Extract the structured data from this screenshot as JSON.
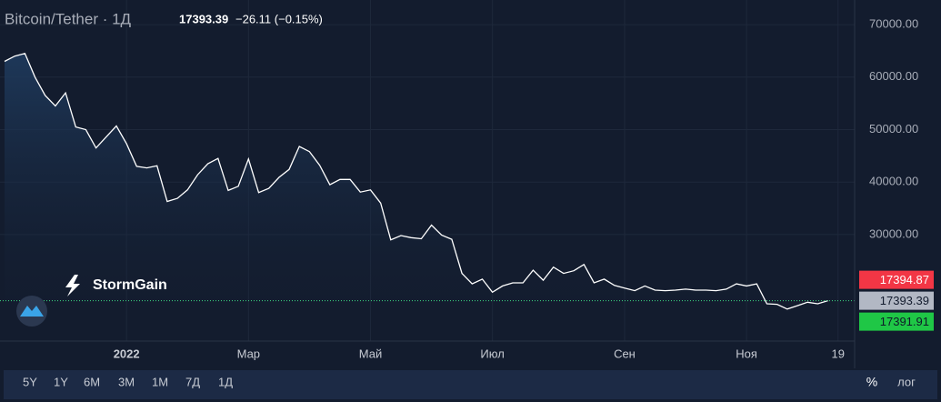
{
  "chart_data": {
    "type": "line",
    "title": "Bitcoin/Tether · 1Д",
    "last_price": 17393.39,
    "change": "−26.11 (−0.15%)",
    "ask": 17394.87,
    "bid": 17391.91,
    "color": "#ffffff",
    "ylim": [
      9700,
      74700
    ],
    "yticks": [
      {
        "value": 30000,
        "label": "30000.00"
      },
      {
        "value": 40000,
        "label": "40000.00"
      },
      {
        "value": 50000,
        "label": "50000.00"
      },
      {
        "value": 60000,
        "label": "60000.00"
      },
      {
        "value": 70000,
        "label": "70000.00"
      }
    ],
    "grid": true,
    "categories": [
      null,
      null,
      null,
      null,
      null,
      null,
      null,
      null,
      null,
      null,
      null,
      null,
      "2022",
      null,
      null,
      null,
      null,
      null,
      null,
      null,
      null,
      null,
      null,
      null,
      "Мар",
      null,
      null,
      null,
      null,
      null,
      null,
      null,
      null,
      null,
      null,
      null,
      "Май",
      null,
      null,
      null,
      null,
      null,
      null,
      null,
      null,
      null,
      null,
      null,
      "Июл",
      null,
      null,
      null,
      null,
      null,
      null,
      null,
      null,
      null,
      null,
      null,
      null,
      "Сен",
      null,
      null,
      null,
      null,
      null,
      null,
      null,
      null,
      null,
      null,
      null,
      "Ноя",
      null,
      null,
      null,
      null,
      null,
      null,
      null,
      null,
      "19"
    ],
    "values": [
      63000,
      64000,
      64500,
      60000,
      56500,
      54500,
      57000,
      50500,
      50000,
      46500,
      48600,
      50700,
      47300,
      43000,
      42700,
      43100,
      36300,
      36900,
      38500,
      41400,
      43500,
      44500,
      38400,
      39200,
      44400,
      38000,
      38800,
      40900,
      42400,
      46800,
      45800,
      43200,
      39500,
      40500,
      40500,
      38100,
      38500,
      36000,
      29000,
      29800,
      29400,
      29200,
      31800,
      29900,
      29100,
      22600,
      20600,
      21500,
      19000,
      20200,
      20800,
      20800,
      23200,
      21300,
      23800,
      22600,
      23100,
      24300,
      20800,
      21500,
      20300,
      19800,
      19300,
      20200,
      19400,
      19300,
      19400,
      19600,
      19400,
      19400,
      19300,
      19600,
      20600,
      20200,
      20600,
      16800,
      16700,
      15800,
      16450,
      17100,
      16800,
      17400,
      null
    ]
  },
  "logo": "StormGain",
  "toolbar": {
    "ranges": [
      "5Y",
      "1Y",
      "6M",
      "3M",
      "1M",
      "7Д",
      "1Д"
    ],
    "percent": "%",
    "log": "лог"
  }
}
